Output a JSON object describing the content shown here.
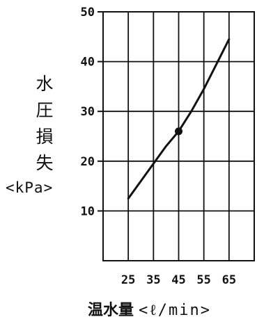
{
  "chart_data": {
    "type": "line",
    "ylabel_chars": [
      "水",
      "圧",
      "損",
      "失"
    ],
    "ylabel_unit": "<kPa>",
    "xlabel_main": "温水量",
    "xlabel_unit": "<ℓ/min>",
    "x_ticks": [
      25,
      35,
      45,
      55,
      65
    ],
    "y_ticks": [
      10,
      20,
      30,
      40,
      50
    ],
    "xlim": [
      15,
      75
    ],
    "ylim": [
      0,
      50
    ],
    "grid": true,
    "series": [
      {
        "x": [
          25,
          30,
          35,
          40,
          45,
          50,
          55,
          60,
          65
        ],
        "y": [
          12.5,
          16,
          19.5,
          23,
          26,
          30,
          34.5,
          39.5,
          44.5
        ]
      }
    ],
    "highlight_point": {
      "x": 45,
      "y": 26
    }
  }
}
